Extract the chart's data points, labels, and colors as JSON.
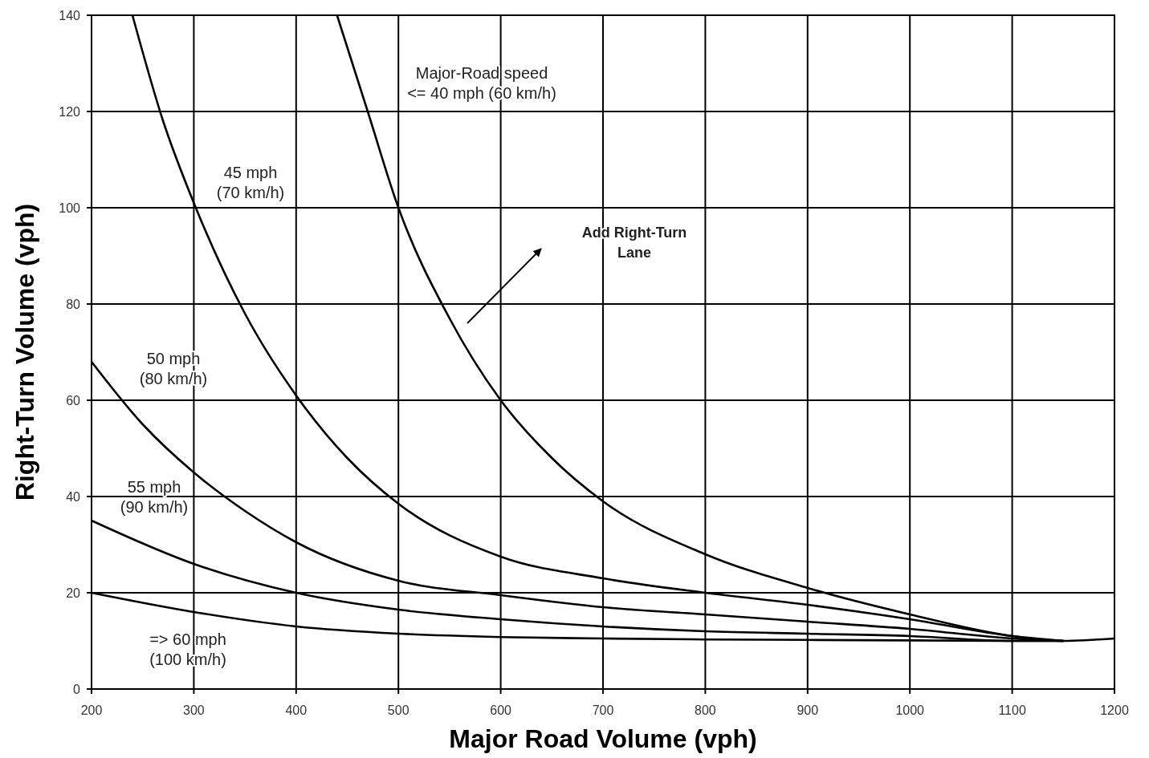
{
  "chart_data": {
    "type": "line",
    "xlabel": "Major Road Volume (vph)",
    "ylabel": "Right-Turn Volume (vph)",
    "xlim": [
      200,
      1200
    ],
    "xticks": [
      200,
      300,
      400,
      500,
      600,
      700,
      800,
      900,
      1000,
      1100,
      1200
    ],
    "ylim": [
      0,
      140
    ],
    "yticks": [
      0,
      20,
      40,
      60,
      80,
      100,
      120,
      140
    ],
    "grid": true,
    "marker": "none",
    "line_style": "solid",
    "series": [
      {
        "color": "#000000",
        "x": [
          440,
          470,
          500,
          550,
          600,
          650,
          700,
          800,
          900,
          1000,
          1100,
          1150,
          1200
        ],
        "values": [
          140,
          120,
          100,
          77,
          60,
          48,
          39,
          28,
          21,
          15.5,
          11,
          10,
          10.5
        ]
      },
      {
        "color": "#000000",
        "x": [
          240,
          270,
          300,
          350,
          400,
          450,
          500,
          600,
          700,
          800,
          900,
          1000,
          1100,
          1150
        ],
        "values": [
          140,
          118,
          101,
          78,
          61,
          48,
          38.5,
          27.5,
          23,
          20,
          17.5,
          14.5,
          11,
          10
        ]
      },
      {
        "color": "#000000",
        "x": [
          200,
          250,
          300,
          350,
          400,
          500,
          600,
          700,
          800,
          900,
          1000,
          1100,
          1150
        ],
        "values": [
          68,
          55,
          45,
          37,
          30.5,
          22.5,
          19.5,
          17,
          15.5,
          14,
          12.5,
          10.5,
          10
        ]
      },
      {
        "color": "#000000",
        "x": [
          200,
          300,
          400,
          500,
          600,
          700,
          800,
          900,
          1000,
          1100,
          1150
        ],
        "values": [
          35,
          26,
          20,
          16.5,
          14.5,
          13,
          12,
          11.5,
          11,
          10,
          10
        ]
      },
      {
        "color": "#000000",
        "x": [
          200,
          300,
          400,
          500,
          600,
          700,
          800,
          900,
          1000,
          1100,
          1150
        ],
        "values": [
          20,
          16,
          13,
          11.5,
          10.8,
          10.5,
          10.3,
          10.2,
          10.1,
          10,
          10
        ]
      }
    ],
    "annotations": [
      "Major-Road speed\n<= 40 mph (60 km/h)",
      "45 mph\n(70 km/h)",
      "50 mph\n(80 km/h)",
      "55 mph\n(90 km/h)",
      "=> 60 mph\n(100 km/h)",
      "Add Right-Turn\nLane"
    ]
  }
}
